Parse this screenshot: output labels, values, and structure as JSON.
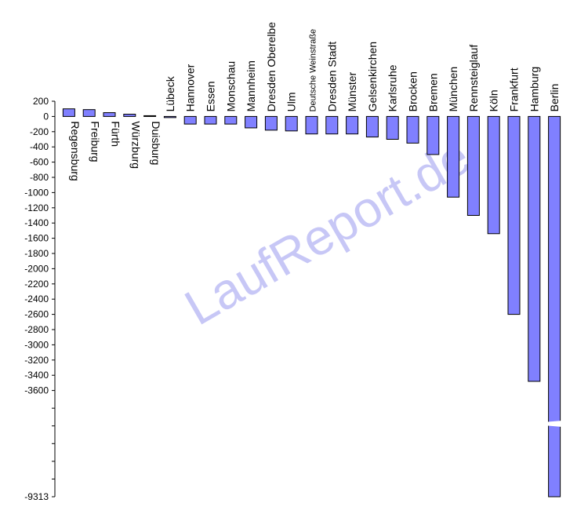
{
  "chart_data": {
    "type": "bar",
    "title": "",
    "xlabel": "",
    "ylabel": "",
    "ylim": [
      -9313,
      200
    ],
    "y_ticks": [
      "200",
      "0",
      "-200",
      "-400",
      "-600",
      "-800",
      "-1000",
      "-1200",
      "-1400",
      "-1600",
      "-1800",
      "-2000",
      "-2200",
      "-2400",
      "-2600",
      "-2800",
      "-3000",
      "-3200",
      "-3400",
      "-3600",
      "-9313"
    ],
    "axis_break": true,
    "grid": false,
    "bar_color": "#8080ff",
    "categories": [
      "Regensburg",
      "Freiburg",
      "Fürth",
      "Würzburg",
      "Duisburg",
      "Lübeck",
      "Hannover",
      "Essen",
      "Monschau",
      "Mannheim",
      "Dresden Oberelbe",
      "Ulm",
      "Deutsche Weinstraße",
      "Dresden Stadt",
      "Münster",
      "Gelsenkirchen",
      "Karlsruhe",
      "Brocken",
      "Bremen",
      "München",
      "Rennsteiglauf",
      "Köln",
      "Frankfurt",
      "Hamburg",
      "Berlin"
    ],
    "values": [
      100,
      90,
      50,
      30,
      10,
      -15,
      -100,
      -100,
      -100,
      -150,
      -180,
      -190,
      -230,
      -230,
      -230,
      -270,
      -300,
      -350,
      -500,
      -1060,
      -1300,
      -1540,
      -2600,
      -3480,
      -9313
    ]
  },
  "watermark": "LaufReport.de"
}
